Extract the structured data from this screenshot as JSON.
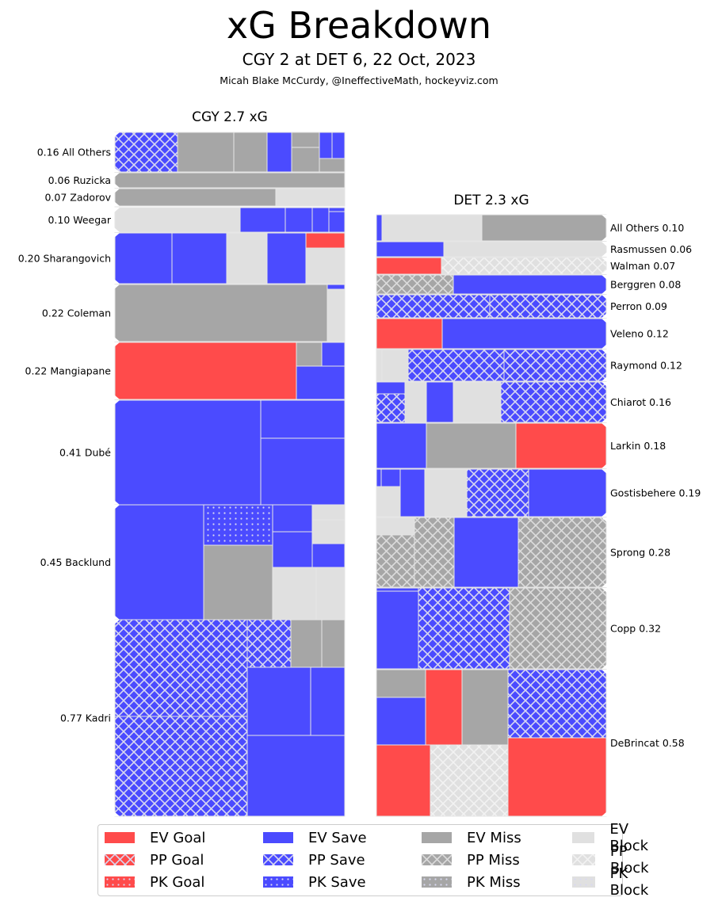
{
  "title": "xG Breakdown",
  "subtitle": "CGY 2 at DET 6, 22 Oct, 2023",
  "credit": "Micah Blake McCurdy, @IneffectiveMath, hockeyviz.com",
  "colors": {
    "goal": "#ff4b4b",
    "save": "#4b4bff",
    "miss": "#a6a6a6",
    "block": "#e0e0e0",
    "hatch": "#d8d8f0",
    "separator": "#e6e6e6"
  },
  "chart_data": {
    "type": "treemap",
    "panels": [
      {
        "team": "CGY",
        "title": "CGY 2.7 xG",
        "total_xg": 2.7,
        "label_side": "left",
        "rows": [
          {
            "player": "All Others",
            "xg": 0.16,
            "label": "0.16 All Others"
          },
          {
            "player": "Ruzicka",
            "xg": 0.06,
            "label": "0.06 Ruzicka"
          },
          {
            "player": "Zadorov",
            "xg": 0.07,
            "label": "0.07 Zadorov"
          },
          {
            "player": "Weegar",
            "xg": 0.1,
            "label": "0.10 Weegar"
          },
          {
            "player": "Sharangovich",
            "xg": 0.2,
            "label": "0.20 Sharangovich"
          },
          {
            "player": "Coleman",
            "xg": 0.22,
            "label": "0.22 Coleman"
          },
          {
            "player": "Mangiapane",
            "xg": 0.22,
            "label": "0.22 Mangiapane"
          },
          {
            "player": "Dubé",
            "xg": 0.41,
            "label": "0.41 Dubé"
          },
          {
            "player": "Backlund",
            "xg": 0.45,
            "label": "0.45 Backlund"
          },
          {
            "player": "Kadri",
            "xg": 0.77,
            "label": "0.77 Kadri"
          }
        ]
      },
      {
        "team": "DET",
        "title": "DET 2.3 xG",
        "total_xg": 2.3,
        "label_side": "right",
        "rows": [
          {
            "player": "All Others",
            "xg": 0.1,
            "label": "All Others 0.10"
          },
          {
            "player": "Rasmussen",
            "xg": 0.06,
            "label": "Rasmussen 0.06"
          },
          {
            "player": "Walman",
            "xg": 0.07,
            "label": "Walman 0.07"
          },
          {
            "player": "Berggren",
            "xg": 0.08,
            "label": "Berggren 0.08"
          },
          {
            "player": "Perron",
            "xg": 0.09,
            "label": "Perron 0.09"
          },
          {
            "player": "Veleno",
            "xg": 0.12,
            "label": "Veleno 0.12"
          },
          {
            "player": "Raymond",
            "xg": 0.12,
            "label": "Raymond 0.12"
          },
          {
            "player": "Chiarot",
            "xg": 0.16,
            "label": "Chiarot 0.16"
          },
          {
            "player": "Larkin",
            "xg": 0.18,
            "label": "Larkin 0.18"
          },
          {
            "player": "Gostisbehere",
            "xg": 0.19,
            "label": "Gostisbehere 0.19"
          },
          {
            "player": "Sprong",
            "xg": 0.28,
            "label": "Sprong 0.28"
          },
          {
            "player": "Copp",
            "xg": 0.32,
            "label": "Copp 0.32"
          },
          {
            "player": "DeBrincat",
            "xg": 0.58,
            "label": "DeBrincat 0.58"
          }
        ]
      }
    ],
    "legend": {
      "placement": "bottom",
      "entries": [
        {
          "label": "EV Goal",
          "outcome": "goal",
          "strength": "EV"
        },
        {
          "label": "PP Goal",
          "outcome": "goal",
          "strength": "PP"
        },
        {
          "label": "PK Goal",
          "outcome": "goal",
          "strength": "PK"
        },
        {
          "label": "EV Save",
          "outcome": "save",
          "strength": "EV"
        },
        {
          "label": "PP Save",
          "outcome": "save",
          "strength": "PP"
        },
        {
          "label": "PK Save",
          "outcome": "save",
          "strength": "PK"
        },
        {
          "label": "EV Miss",
          "outcome": "miss",
          "strength": "EV"
        },
        {
          "label": "PP Miss",
          "outcome": "miss",
          "strength": "PP"
        },
        {
          "label": "PK Miss",
          "outcome": "miss",
          "strength": "PK"
        },
        {
          "label": "EV Block",
          "outcome": "block",
          "strength": "EV"
        },
        {
          "label": "PP Block",
          "outcome": "block",
          "strength": "PP"
        },
        {
          "label": "PK Block",
          "outcome": "block",
          "strength": "PK"
        }
      ]
    }
  }
}
